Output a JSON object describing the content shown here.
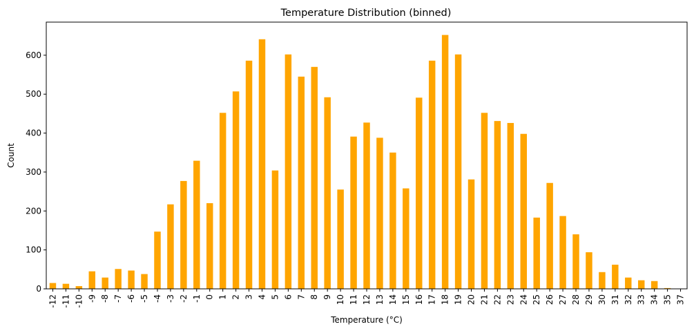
{
  "chart_data": {
    "type": "bar",
    "title": "Temperature Distribution (binned)",
    "xlabel": "Temperature (°C)",
    "ylabel": "Count",
    "ylim": [
      0,
      685
    ],
    "yticks": [
      0,
      100,
      200,
      300,
      400,
      500,
      600
    ],
    "grid": false,
    "legend": "none",
    "bar_color": "#ffa500",
    "categories": [
      "-12",
      "-11",
      "-10",
      "-9",
      "-8",
      "-7",
      "-6",
      "-5",
      "-4",
      "-3",
      "-2",
      "-1",
      "0",
      "1",
      "2",
      "3",
      "4",
      "5",
      "6",
      "7",
      "8",
      "9",
      "10",
      "11",
      "12",
      "13",
      "14",
      "15",
      "16",
      "17",
      "18",
      "19",
      "20",
      "21",
      "22",
      "23",
      "24",
      "25",
      "26",
      "27",
      "28",
      "29",
      "30",
      "31",
      "32",
      "33",
      "34",
      "35",
      "37"
    ],
    "values": [
      15,
      13,
      7,
      45,
      29,
      51,
      47,
      38,
      147,
      217,
      277,
      329,
      220,
      452,
      507,
      586,
      641,
      304,
      602,
      545,
      570,
      492,
      255,
      391,
      427,
      388,
      350,
      258,
      491,
      586,
      652,
      602,
      281,
      452,
      431,
      426,
      398,
      183,
      272,
      187,
      140,
      94,
      43,
      62,
      29,
      22,
      20,
      2,
      0
    ]
  }
}
